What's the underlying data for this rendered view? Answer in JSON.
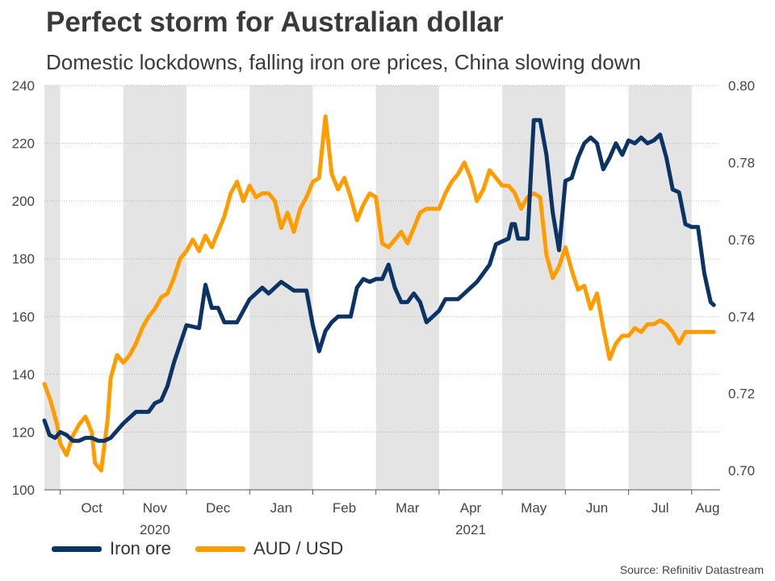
{
  "title": "Perfect storm for Australian dollar",
  "subtitle": "Domestic lockdowns, falling iron ore prices, China slowing down",
  "source": "Source: Refinitiv Datastream",
  "colors": {
    "iron_ore": "#0b3363",
    "aud_usd": "#ff9d00",
    "shade": "#e4e4e4",
    "grid": "#b5b5b5"
  },
  "chart_data": {
    "type": "line",
    "title": "Perfect storm for Australian dollar",
    "subtitle": "Domestic lockdowns, falling iron ore prices, China slowing down",
    "x_unit": "months since 2020-10-01",
    "xlim": [
      -0.25,
      10.45
    ],
    "x_ticks": [
      {
        "label": "Oct",
        "pos": 0.5
      },
      {
        "label": "Nov",
        "pos": 1.5
      },
      {
        "label": "Dec",
        "pos": 2.5
      },
      {
        "label": "Jan",
        "pos": 3.5
      },
      {
        "label": "Feb",
        "pos": 4.5
      },
      {
        "label": "Mar",
        "pos": 5.5
      },
      {
        "label": "Apr",
        "pos": 6.5
      },
      {
        "label": "May",
        "pos": 7.5
      },
      {
        "label": "Jun",
        "pos": 8.5
      },
      {
        "label": "Jul",
        "pos": 9.5
      },
      {
        "label": "Aug",
        "pos": 10.25
      }
    ],
    "year_labels": [
      {
        "label": "2020",
        "pos": 1.5
      },
      {
        "label": "2021",
        "pos": 6.5
      }
    ],
    "shaded_months": [
      [
        -0.25,
        0
      ],
      [
        1,
        2
      ],
      [
        3,
        4
      ],
      [
        5,
        6
      ],
      [
        7,
        8
      ],
      [
        9,
        10
      ]
    ],
    "month_boundaries": [
      0,
      1,
      2,
      3,
      4,
      5,
      6,
      7,
      8,
      9,
      10
    ],
    "left_axis": {
      "label": "Iron ore",
      "range": [
        100,
        240
      ],
      "ticks": [
        100,
        120,
        140,
        160,
        180,
        200,
        220,
        240
      ]
    },
    "right_axis": {
      "label": "AUD / USD",
      "range": [
        0.695,
        0.8
      ],
      "ticks": [
        "0.70",
        "0.72",
        "0.74",
        "0.76",
        "0.78",
        "0.80"
      ]
    },
    "series": [
      {
        "name": "Iron ore",
        "axis": "left",
        "x": [
          -0.25,
          -0.17,
          -0.08,
          0.0,
          0.1,
          0.2,
          0.3,
          0.4,
          0.5,
          0.6,
          0.7,
          0.8,
          1.0,
          1.2,
          1.4,
          1.5,
          1.6,
          1.7,
          1.8,
          2.0,
          2.2,
          2.3,
          2.4,
          2.5,
          2.6,
          2.8,
          3.0,
          3.1,
          3.2,
          3.3,
          3.5,
          3.7,
          3.8,
          3.9,
          4.0,
          4.1,
          4.2,
          4.3,
          4.4,
          4.5,
          4.6,
          4.7,
          4.8,
          4.9,
          5.0,
          5.1,
          5.2,
          5.3,
          5.4,
          5.5,
          5.6,
          5.7,
          5.8,
          5.9,
          6.0,
          6.1,
          6.2,
          6.3,
          6.4,
          6.5,
          6.6,
          6.7,
          6.8,
          6.9,
          7.0,
          7.1,
          7.15,
          7.2,
          7.25,
          7.3,
          7.4,
          7.5,
          7.6,
          7.7,
          7.8,
          7.9,
          8.0,
          8.1,
          8.2,
          8.3,
          8.4,
          8.5,
          8.6,
          8.7,
          8.8,
          8.9,
          9.0,
          9.1,
          9.2,
          9.3,
          9.4,
          9.5,
          9.6,
          9.7,
          9.8,
          9.9,
          10.0,
          10.1,
          10.2,
          10.3,
          10.35
        ],
        "y": [
          124,
          119,
          118,
          120,
          119,
          117,
          117,
          118,
          118,
          117,
          117,
          118,
          123,
          127,
          127,
          130,
          131,
          136,
          144,
          157,
          156,
          171,
          163,
          163,
          158,
          158,
          166,
          168,
          170,
          168,
          172,
          169,
          169,
          169,
          157,
          148,
          155,
          158,
          160,
          160,
          160,
          170,
          173,
          172,
          173,
          173,
          178,
          170,
          165,
          165,
          168,
          165,
          158,
          160,
          162,
          166,
          166,
          166,
          168,
          170,
          172,
          175,
          178,
          185,
          186,
          187,
          192,
          192,
          187,
          187,
          187,
          228,
          228,
          216,
          196,
          183,
          207,
          208,
          215,
          220,
          222,
          220,
          211,
          215,
          220,
          216,
          221,
          220,
          222,
          220,
          221,
          223,
          215,
          204,
          203,
          192,
          191,
          191,
          175,
          165,
          164
        ]
      },
      {
        "name": "AUD / USD",
        "axis": "right",
        "x": [
          -0.25,
          -0.15,
          -0.05,
          0.0,
          0.1,
          0.2,
          0.3,
          0.4,
          0.5,
          0.55,
          0.65,
          0.75,
          0.8,
          0.9,
          1.0,
          1.1,
          1.2,
          1.3,
          1.4,
          1.5,
          1.6,
          1.7,
          1.8,
          1.9,
          2.0,
          2.1,
          2.2,
          2.3,
          2.4,
          2.5,
          2.6,
          2.7,
          2.8,
          2.9,
          3.0,
          3.1,
          3.2,
          3.3,
          3.4,
          3.5,
          3.6,
          3.7,
          3.8,
          3.9,
          4.0,
          4.1,
          4.2,
          4.3,
          4.4,
          4.5,
          4.6,
          4.7,
          4.8,
          4.9,
          5.0,
          5.1,
          5.2,
          5.3,
          5.4,
          5.5,
          5.6,
          5.7,
          5.8,
          5.9,
          6.0,
          6.1,
          6.2,
          6.3,
          6.4,
          6.5,
          6.6,
          6.7,
          6.8,
          6.9,
          7.0,
          7.1,
          7.15,
          7.2,
          7.3,
          7.4,
          7.5,
          7.6,
          7.7,
          7.8,
          7.9,
          8.0,
          8.1,
          8.2,
          8.3,
          8.4,
          8.5,
          8.6,
          8.7,
          8.8,
          8.9,
          9.0,
          9.1,
          9.2,
          9.3,
          9.4,
          9.5,
          9.6,
          9.7,
          9.8,
          9.9,
          10.0,
          10.1,
          10.2,
          10.3,
          10.35
        ],
        "y": [
          0.7225,
          0.718,
          0.712,
          0.707,
          0.704,
          0.709,
          0.712,
          0.714,
          0.71,
          0.702,
          0.7,
          0.713,
          0.724,
          0.73,
          0.728,
          0.73,
          0.733,
          0.737,
          0.74,
          0.742,
          0.745,
          0.746,
          0.75,
          0.755,
          0.757,
          0.76,
          0.757,
          0.761,
          0.758,
          0.762,
          0.766,
          0.772,
          0.775,
          0.77,
          0.774,
          0.771,
          0.772,
          0.772,
          0.77,
          0.763,
          0.767,
          0.762,
          0.768,
          0.771,
          0.775,
          0.776,
          0.792,
          0.777,
          0.773,
          0.776,
          0.771,
          0.765,
          0.769,
          0.772,
          0.771,
          0.759,
          0.758,
          0.76,
          0.762,
          0.759,
          0.763,
          0.767,
          0.768,
          0.768,
          0.768,
          0.772,
          0.775,
          0.777,
          0.78,
          0.776,
          0.77,
          0.773,
          0.778,
          0.776,
          0.774,
          0.774,
          0.773,
          0.772,
          0.768,
          0.771,
          0.772,
          0.771,
          0.756,
          0.75,
          0.753,
          0.758,
          0.752,
          0.747,
          0.748,
          0.742,
          0.746,
          0.737,
          0.729,
          0.733,
          0.735,
          0.735,
          0.737,
          0.736,
          0.738,
          0.738,
          0.739,
          0.738,
          0.736,
          0.733,
          0.736,
          0.736,
          0.736,
          0.736,
          0.736,
          0.736
        ]
      }
    ]
  }
}
